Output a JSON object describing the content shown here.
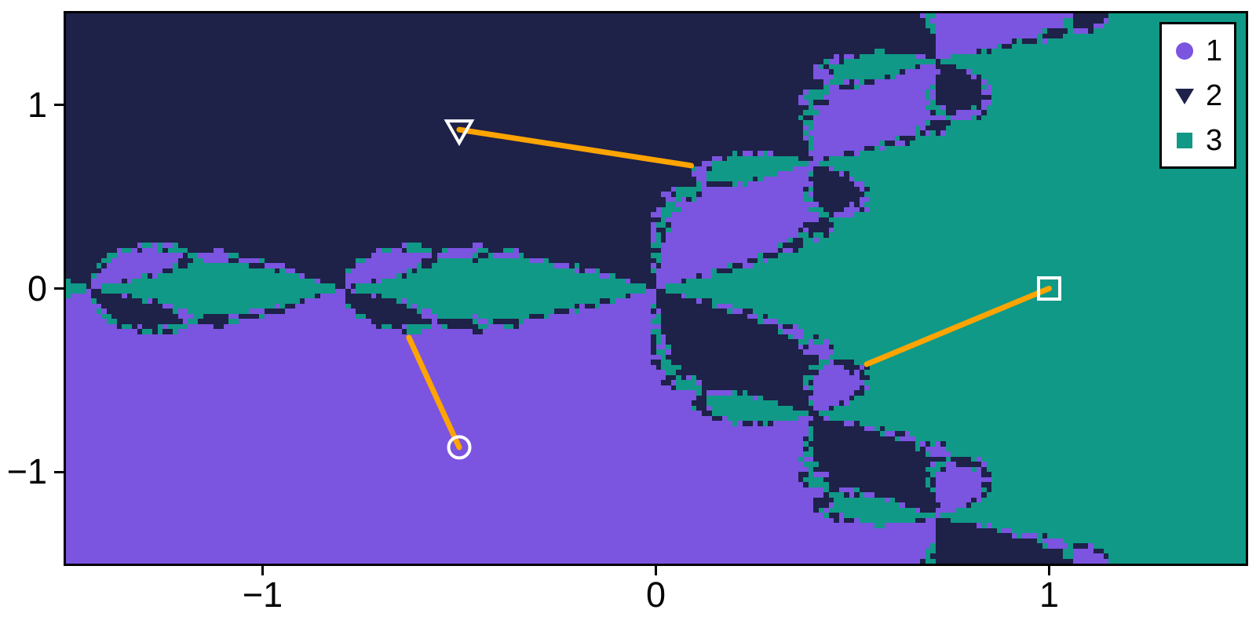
{
  "figure": {
    "background": "#FFFFFF",
    "frame_color": "#000000",
    "tick_color": "#000000",
    "tick_label_color": "#000000"
  },
  "chart_data": {
    "type": "heatmap",
    "subtype": "newton-fractal-basins",
    "title": "",
    "xlabel": "",
    "ylabel": "",
    "xlim": [
      -1.5,
      1.5
    ],
    "ylim": [
      -1.5,
      1.5
    ],
    "grid": false,
    "x_ticks": [
      {
        "value": -1,
        "label": "−1"
      },
      {
        "value": 0,
        "label": "0"
      },
      {
        "value": 1,
        "label": "1"
      }
    ],
    "y_ticks": [
      {
        "value": 1,
        "label": "1"
      },
      {
        "value": 0,
        "label": "0"
      },
      {
        "value": -1,
        "label": "−1"
      }
    ],
    "newton": {
      "function": "z^3 - 1",
      "grid": [
        232,
        108
      ],
      "max_iter": 50
    },
    "roots": [
      {
        "label": "1",
        "re": -0.5,
        "im": -0.8660254,
        "basin_color": "#7B54E0",
        "marker": "circle"
      },
      {
        "label": "2",
        "re": -0.5,
        "im": 0.8660254,
        "basin_color": "#1E2148",
        "marker": "triangle-down"
      },
      {
        "label": "3",
        "re": 1.0,
        "im": 0.0,
        "basin_color": "#109987",
        "marker": "square"
      }
    ],
    "marker_style": {
      "stroke": "#FFFFFF",
      "fill": "none",
      "stroke_width": 4
    },
    "annotation_lines": {
      "color": "#FFA400",
      "width": 7,
      "segments": [
        {
          "x1": -0.5,
          "y1": 0.866,
          "x2": 0.09,
          "y2": 0.67
        },
        {
          "x1": -0.628,
          "y1": -0.267,
          "x2": -0.5,
          "y2": -0.866
        },
        {
          "x1": 0.536,
          "y1": -0.413,
          "x2": 1.0,
          "y2": 0.0
        }
      ]
    },
    "legend": {
      "position": "top-right",
      "items": [
        {
          "label": "1",
          "marker": "circle",
          "color": "#7B54E0"
        },
        {
          "label": "2",
          "marker": "triangle-down",
          "color": "#1E2148"
        },
        {
          "label": "3",
          "marker": "square",
          "color": "#109987"
        }
      ]
    }
  }
}
